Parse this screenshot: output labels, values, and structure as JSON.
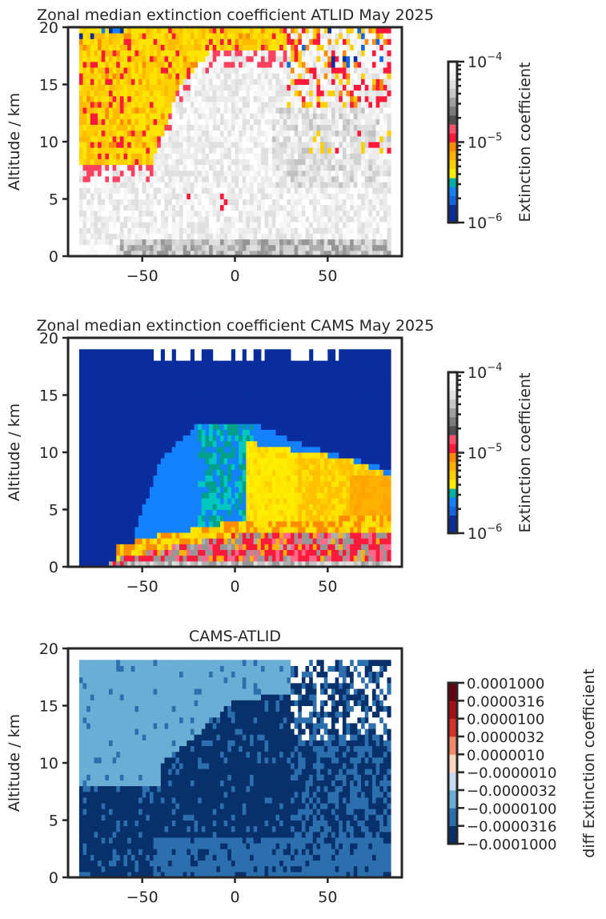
{
  "chart_data": [
    {
      "type": "heatmap",
      "title": "Zonal median extinction coefficient ATLID May 2025",
      "ylabel": "Altitude / km",
      "xlabel": "",
      "xlim": [
        -90,
        90
      ],
      "ylim": [
        0,
        20
      ],
      "xticks": [
        "−50",
        "0",
        "50"
      ],
      "xtick_values": [
        -50,
        0,
        50
      ],
      "yticks": [
        "0",
        "5",
        "10",
        "15",
        "20"
      ],
      "ytick_values": [
        0,
        5,
        10,
        15,
        20
      ],
      "data_extent": {
        "lat": [
          -84,
          84
        ],
        "alt": [
          0,
          20
        ]
      },
      "colorbar": {
        "label": "Extinction coefficient",
        "scale": "log",
        "range": [
          1e-06,
          0.0001
        ],
        "tick_labels": [
          "10^-4",
          "10^-5",
          "10^-6"
        ],
        "colors": [
          "#0a2d9e",
          "#0a2d9e",
          "#1466e0",
          "#1482ff",
          "#00b0a0",
          "#ffee00",
          "#ffd000",
          "#ffb000",
          "#ff8c00",
          "#ff1a3c",
          "#ff5070",
          "#505050",
          "#7c7c7c",
          "#a0a0a0",
          "#c8c8c8",
          "#e0e0e0",
          "#f4f4f4",
          "#ffffff"
        ]
      },
      "regions": [
        "Aerosol layer about 2e-5 to 5e-5 (yellow/orange) in the southern stratosphere from about 8 to 20 km between 84S and 40S, extending to 30N-60N at 15-20 km",
        "Background near 1e-4 (white/grey) in the troposphere; noisy mixed values north of 30N above 12 km"
      ]
    },
    {
      "type": "heatmap",
      "title": "Zonal median extinction coefficient CAMS May 2025",
      "ylabel": "Altitude / km",
      "xlabel": "",
      "xlim": [
        -90,
        90
      ],
      "ylim": [
        0,
        20
      ],
      "xticks": [
        "−50",
        "0",
        "50"
      ],
      "xtick_values": [
        -50,
        0,
        50
      ],
      "yticks": [
        "0",
        "5",
        "10",
        "15",
        "20"
      ],
      "ytick_values": [
        0,
        5,
        10,
        15,
        20
      ],
      "data_extent": {
        "lat": [
          -84,
          84
        ],
        "alt": [
          0,
          19
        ]
      },
      "colorbar": {
        "label": "Extinction coefficient",
        "scale": "log",
        "range": [
          1e-06,
          0.0001
        ],
        "tick_labels": [
          "10^-4",
          "10^-5",
          "10^-6"
        ]
      },
      "regions": [
        "About 1e-6 (dark blue) over most of the domain above 12 km",
        "About 2e-6 (light blue) plume from 40S to 60N between 2 and 12 km",
        "About 1e-5 to 3e-5 (yellow/orange) from 5N to 84N below 12 km",
        "About 3e-5 to 1e-4 (red/grey) near the surface, below 3 km"
      ]
    },
    {
      "type": "heatmap",
      "title": "CAMS-ATLID",
      "ylabel": "Altitude / km",
      "xlabel": "",
      "xlim": [
        -90,
        90
      ],
      "ylim": [
        0,
        20
      ],
      "xticks": [
        "−50",
        "0",
        "50"
      ],
      "xtick_values": [
        -50,
        0,
        50
      ],
      "yticks": [
        "0",
        "5",
        "10",
        "15",
        "20"
      ],
      "ytick_values": [
        0,
        5,
        10,
        15,
        20
      ],
      "data_extent": {
        "lat": [
          -84,
          84
        ],
        "alt": [
          0,
          19
        ]
      },
      "colorbar": {
        "label": "diff Extinction coefficient",
        "scale": "symlog",
        "boundaries": [
          -0.0001,
          -3.16e-05,
          -1e-05,
          -3.2e-06,
          -1e-06,
          1e-06,
          3.2e-06,
          1e-05,
          3.16e-05,
          0.0001
        ],
        "tick_labels": [
          "0.0001000",
          "0.0000316",
          "0.0000100",
          "0.0000032",
          "0.0000010",
          "−0.0000010",
          "−0.0000032",
          "−0.0000100",
          "−0.0000316",
          "−0.0001000"
        ],
        "colors": [
          "#08306b",
          "#2c6fae",
          "#6aaed6",
          "#c6dbef",
          "#fbd5c0",
          "#f08a6c",
          "#d73228",
          "#a50f15",
          "#67000d"
        ]
      },
      "regions": [
        "About -1e-5 (mid blue) in the southern stratosphere 84S-30S, 10-19 km",
        "Below -3e-5 (dark navy) over much of the troposphere and tropical upper troposphere",
        "About -3e-5 (medium blue) near-surface band and northern mid-levels",
        "Mixed values (white gaps) north of 30N above 12 km"
      ]
    }
  ]
}
